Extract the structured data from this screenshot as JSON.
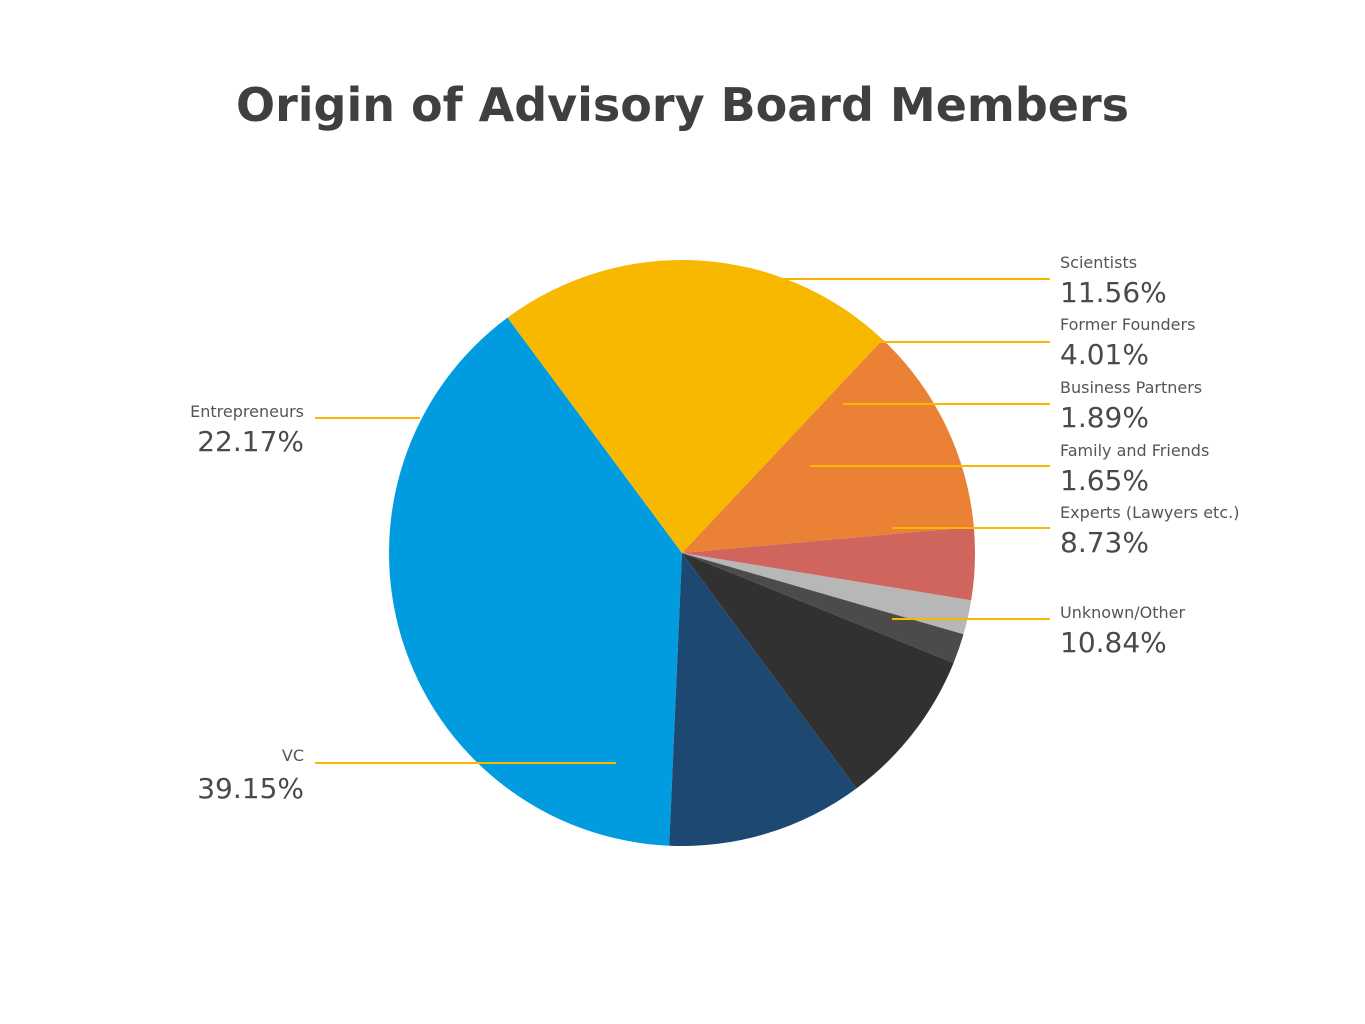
{
  "chart_data": {
    "type": "pie",
    "title": "Origin of Advisory Board Members",
    "slices": [
      {
        "label": "VC",
        "value": 39.15,
        "value_label": "39.15%",
        "color": "#019cdf"
      },
      {
        "label": "Entrepreneurs",
        "value": 22.17,
        "value_label": "22.17%",
        "color": "#f8b800"
      },
      {
        "label": "Scientists",
        "value": 11.56,
        "value_label": "11.56%",
        "color": "#ea8135"
      },
      {
        "label": "Former Founders",
        "value": 4.01,
        "value_label": "4.01%",
        "color": "#cf655d"
      },
      {
        "label": "Business Partners",
        "value": 1.89,
        "value_label": "1.89%",
        "color": "#b7b7b7"
      },
      {
        "label": "Family and Friends",
        "value": 1.65,
        "value_label": "1.65%",
        "color": "#4b4b4b"
      },
      {
        "label": "Experts (Lawyers etc.)",
        "value": 8.73,
        "value_label": "8.73%",
        "color": "#313131"
      },
      {
        "label": "Unknown/Other",
        "value": 10.84,
        "value_label": "10.84%",
        "color": "#1d4871"
      }
    ],
    "leader_line_color": "#f8b800"
  }
}
